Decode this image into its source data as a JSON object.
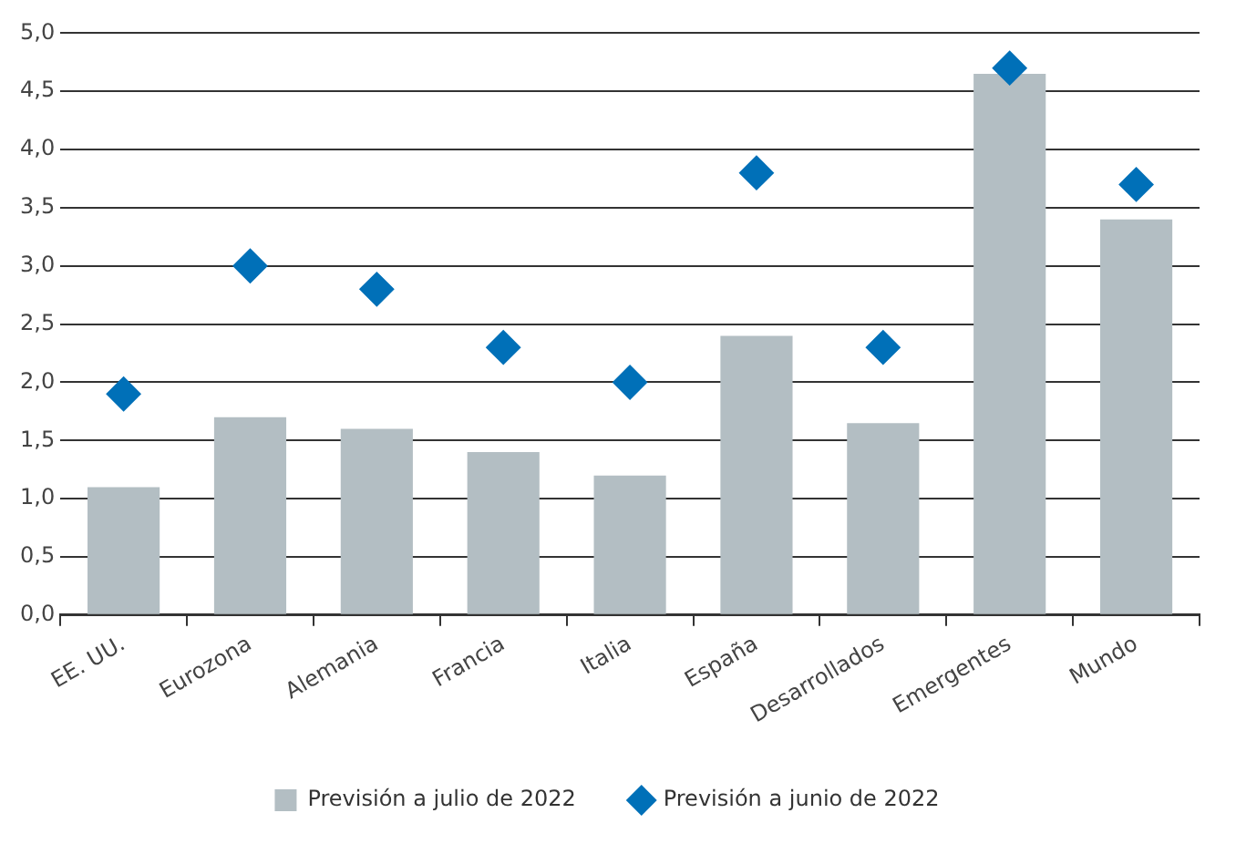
{
  "chart_data": {
    "type": "bar",
    "categories": [
      "EE. UU.",
      "Eurozona",
      "Alemania",
      "Francia",
      "Italia",
      "España",
      "Desarrollados",
      "Emergentes",
      "Mundo"
    ],
    "series": [
      {
        "name": "Previsión a julio de 2022",
        "color": "#b3bec3",
        "values": [
          1.1,
          1.7,
          1.6,
          1.4,
          1.2,
          2.4,
          1.65,
          4.65,
          3.4
        ]
      },
      {
        "name": "Previsión a junio de 2022",
        "type": "scatter",
        "color": "#0070b8",
        "marker": "diamond",
        "values": [
          1.9,
          3.0,
          2.8,
          2.3,
          2.0,
          3.8,
          2.3,
          4.7,
          3.7
        ]
      }
    ],
    "ylim": [
      0,
      5
    ],
    "yticks": [
      {
        "value": 0,
        "label": "0,0"
      },
      {
        "value": 0.5,
        "label": "0,5"
      },
      {
        "value": 1,
        "label": "1,0"
      },
      {
        "value": 1.5,
        "label": "1,5"
      },
      {
        "value": 2,
        "label": "2,0"
      },
      {
        "value": 2.5,
        "label": "2,5"
      },
      {
        "value": 3,
        "label": "3,0"
      },
      {
        "value": 3.5,
        "label": "3,5"
      },
      {
        "value": 4,
        "label": "4,0"
      },
      {
        "value": 4.5,
        "label": "4,5"
      },
      {
        "value": 5,
        "label": "5,0"
      }
    ],
    "grid": "y",
    "legend": "bottom"
  }
}
